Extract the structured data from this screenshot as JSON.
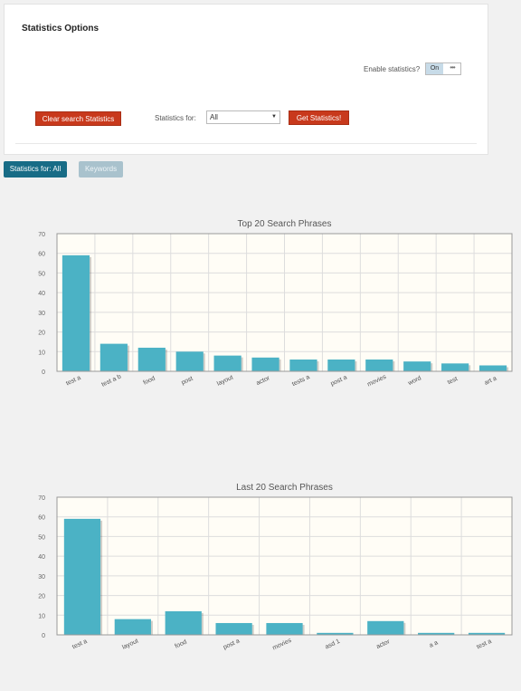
{
  "panel": {
    "title": "Statistics Options",
    "enable_label": "Enable statistics?",
    "toggle_state": "On",
    "clear_button": "Clear search Statistics",
    "stats_for_label": "Statistics for:",
    "stats_for_value": "All",
    "get_button": "Get Statistics!"
  },
  "tabs": [
    {
      "label": "Statistics for: All",
      "active": true
    },
    {
      "label": "Keywords",
      "active": false
    }
  ],
  "colors": {
    "bar": "#4bb2c5",
    "accent_red": "#c8391c",
    "tab_active": "#186c86",
    "plot_bg": "#fffdf6"
  },
  "chart_data": [
    {
      "type": "bar",
      "title": "Top 20 Search Phrases",
      "categories": [
        "test a",
        "test a b",
        "food",
        "post",
        "layout",
        "actor",
        "tests a",
        "post a",
        "movies",
        "word",
        "test",
        "art a"
      ],
      "values": [
        59,
        14,
        12,
        10,
        8,
        7,
        6,
        6,
        6,
        5,
        4,
        3
      ],
      "ylim": [
        0,
        70
      ],
      "yticks": [
        "0",
        "10",
        "20",
        "30",
        "40",
        "50",
        "60",
        "70"
      ],
      "grid": true
    },
    {
      "type": "bar",
      "title": "Last 20 Search Phrases",
      "categories": [
        "test a",
        "layout",
        "food",
        "post a",
        "movies",
        "asd 1",
        "actor",
        "a a",
        "test a"
      ],
      "values": [
        59,
        8,
        12,
        6,
        6,
        1,
        7,
        1,
        1
      ],
      "ylim": [
        0,
        70
      ],
      "yticks": [
        "0",
        "10",
        "20",
        "30",
        "40",
        "50",
        "60",
        "70"
      ],
      "grid": true
    }
  ]
}
